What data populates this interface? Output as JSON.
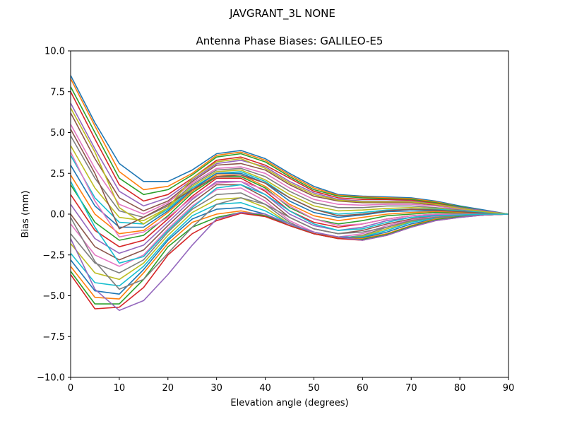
{
  "figure": {
    "suptitle": "JAVGRANT_3L     NONE"
  },
  "chart_data": {
    "type": "line",
    "title": "Antenna Phase Biases: GALILEO-E5",
    "xlabel": "Elevation angle (degrees)",
    "ylabel": "Bias (mm)",
    "xlim": [
      0,
      90
    ],
    "ylim": [
      -10,
      10
    ],
    "xticks": [
      0,
      10,
      20,
      30,
      40,
      50,
      60,
      70,
      80,
      90
    ],
    "xtick_labels": [
      "0",
      "10",
      "20",
      "30",
      "40",
      "50",
      "60",
      "70",
      "80",
      "90"
    ],
    "yticks": [
      10,
      7.5,
      5,
      2.5,
      0,
      -2.5,
      -5,
      -7.5,
      -10
    ],
    "ytick_labels": [
      "10.0",
      "7.5",
      "5.0",
      "2.5",
      "0.0",
      "−2.5",
      "−5.0",
      "−7.5",
      "−10.0"
    ],
    "grid": false,
    "legend": "none",
    "palette": [
      "#1f77b4",
      "#ff7f0e",
      "#2ca02c",
      "#d62728",
      "#9467bd",
      "#8c564b",
      "#e377c2",
      "#7f7f7f",
      "#bcbd22",
      "#17becf"
    ],
    "x": [
      0,
      5,
      10,
      15,
      20,
      25,
      30,
      35,
      40,
      45,
      50,
      55,
      60,
      65,
      70,
      75,
      80,
      85,
      90
    ],
    "series": [
      {
        "values": [
          8.5,
          5.6,
          3.1,
          2.0,
          2.0,
          2.7,
          3.7,
          3.9,
          3.4,
          2.5,
          1.7,
          1.2,
          1.1,
          1.05,
          1.0,
          0.8,
          0.5,
          0.25,
          0
        ]
      },
      {
        "values": [
          8.3,
          5.4,
          2.6,
          1.5,
          1.7,
          2.5,
          3.6,
          3.8,
          3.3,
          2.4,
          1.6,
          1.15,
          1.05,
          1.0,
          0.95,
          0.75,
          0.45,
          0.2,
          0
        ]
      },
      {
        "values": [
          7.8,
          5.0,
          2.2,
          1.2,
          1.5,
          2.4,
          3.5,
          3.7,
          3.2,
          2.3,
          1.5,
          1.1,
          1.0,
          0.95,
          0.9,
          0.7,
          0.45,
          0.2,
          0
        ]
      },
      {
        "values": [
          7.5,
          4.6,
          1.8,
          0.8,
          1.2,
          2.2,
          3.3,
          3.5,
          3.0,
          2.2,
          1.4,
          1.0,
          0.9,
          0.9,
          0.85,
          0.65,
          0.4,
          0.2,
          0
        ]
      },
      {
        "values": [
          6.8,
          4.0,
          1.4,
          0.5,
          1.0,
          2.1,
          3.1,
          3.3,
          2.9,
          2.0,
          1.3,
          0.9,
          0.8,
          0.8,
          0.8,
          0.6,
          0.4,
          0.2,
          0
        ]
      },
      {
        "values": [
          6.2,
          3.4,
          1.0,
          0.2,
          0.8,
          2.0,
          3.0,
          3.1,
          2.7,
          1.8,
          1.1,
          0.8,
          0.7,
          0.7,
          0.7,
          0.55,
          0.35,
          0.15,
          0
        ]
      },
      {
        "values": [
          5.5,
          2.8,
          0.6,
          0.0,
          0.7,
          1.9,
          2.8,
          2.9,
          2.5,
          1.6,
          0.9,
          0.6,
          0.55,
          0.6,
          0.6,
          0.5,
          0.3,
          0.15,
          0
        ]
      },
      {
        "values": [
          4.8,
          2.2,
          0.2,
          -0.2,
          0.5,
          1.8,
          2.7,
          2.8,
          2.3,
          1.4,
          0.7,
          0.4,
          0.4,
          0.5,
          0.5,
          0.4,
          0.25,
          0.1,
          0
        ]
      },
      {
        "values": [
          4.2,
          1.6,
          -0.2,
          -0.4,
          0.4,
          1.7,
          2.6,
          2.7,
          2.1,
          1.2,
          0.5,
          0.2,
          0.25,
          0.35,
          0.4,
          0.35,
          0.2,
          0.1,
          0
        ]
      },
      {
        "values": [
          3.6,
          1.0,
          -0.5,
          -0.6,
          0.3,
          1.6,
          2.5,
          2.6,
          2.0,
          1.0,
          0.3,
          0.0,
          0.1,
          0.25,
          0.3,
          0.3,
          0.2,
          0.1,
          0
        ]
      },
      {
        "values": [
          3.0,
          0.5,
          -0.8,
          -0.8,
          0.2,
          1.5,
          2.5,
          2.5,
          1.9,
          0.8,
          0.1,
          -0.2,
          -0.05,
          0.15,
          0.2,
          0.2,
          0.15,
          0.05,
          0
        ]
      },
      {
        "values": [
          2.4,
          0.0,
          -1.2,
          -1.0,
          0.1,
          1.4,
          2.4,
          2.4,
          1.7,
          0.6,
          -0.1,
          -0.4,
          -0.2,
          0.0,
          0.1,
          0.15,
          0.1,
          0.05,
          0
        ]
      },
      {
        "values": [
          1.8,
          -0.5,
          -1.6,
          -1.3,
          -0.1,
          1.3,
          2.3,
          2.3,
          1.6,
          0.4,
          -0.3,
          -0.6,
          -0.4,
          -0.1,
          0.0,
          0.1,
          0.05,
          0.0,
          0
        ]
      },
      {
        "values": [
          1.2,
          -1.0,
          -2.0,
          -1.6,
          -0.3,
          1.1,
          2.2,
          2.2,
          1.4,
          0.2,
          -0.5,
          -0.8,
          -0.6,
          -0.3,
          -0.1,
          0.0,
          0.0,
          0.0,
          0
        ]
      },
      {
        "values": [
          0.6,
          -1.5,
          -2.4,
          -1.9,
          -0.5,
          0.9,
          2.0,
          2.0,
          1.2,
          0.0,
          -0.7,
          -1.0,
          -0.8,
          -0.4,
          -0.2,
          -0.05,
          0.0,
          0.0,
          0
        ]
      },
      {
        "values": [
          0.0,
          -2.0,
          -2.8,
          -2.2,
          -0.7,
          0.7,
          1.8,
          1.8,
          1.0,
          -0.2,
          -0.9,
          -1.2,
          -1.0,
          -0.6,
          -0.3,
          -0.1,
          -0.05,
          0.0,
          0
        ]
      },
      {
        "values": [
          -0.6,
          -2.5,
          -3.2,
          -2.5,
          -0.9,
          0.5,
          1.5,
          1.6,
          0.8,
          -0.4,
          -1.1,
          -1.4,
          -1.2,
          -0.7,
          -0.35,
          -0.15,
          -0.05,
          0.0,
          0
        ]
      },
      {
        "values": [
          -1.2,
          -3.0,
          -3.6,
          -2.8,
          -1.1,
          0.3,
          1.2,
          1.3,
          0.6,
          -0.5,
          -1.2,
          -1.5,
          -1.3,
          -0.8,
          -0.4,
          -0.2,
          -0.1,
          0.0,
          0
        ]
      },
      {
        "values": [
          -1.8,
          -3.6,
          -4.0,
          -3.0,
          -1.3,
          0.1,
          0.9,
          1.0,
          0.4,
          -0.6,
          -1.2,
          -1.45,
          -1.35,
          -0.9,
          -0.45,
          -0.2,
          -0.1,
          -0.05,
          0
        ]
      },
      {
        "values": [
          -2.4,
          -4.2,
          -4.4,
          -3.2,
          -1.5,
          -0.1,
          0.6,
          0.7,
          0.2,
          -0.6,
          -1.2,
          -1.4,
          -1.4,
          -1.0,
          -0.5,
          -0.25,
          -0.1,
          -0.05,
          0
        ]
      },
      {
        "values": [
          -2.8,
          -4.7,
          -4.9,
          -3.4,
          -1.6,
          -0.3,
          0.3,
          0.4,
          0.0,
          -0.7,
          -1.2,
          -1.4,
          -1.45,
          -1.1,
          -0.6,
          -0.3,
          -0.15,
          -0.05,
          0
        ]
      },
      {
        "values": [
          -3.2,
          -5.1,
          -5.2,
          -3.6,
          -1.8,
          -0.5,
          0.0,
          0.2,
          -0.1,
          -0.7,
          -1.2,
          -1.45,
          -1.5,
          -1.2,
          -0.7,
          -0.3,
          -0.15,
          -0.05,
          0
        ]
      },
      {
        "values": [
          -3.5,
          -5.5,
          -5.5,
          -4.0,
          -2.0,
          -0.8,
          -0.2,
          0.1,
          -0.1,
          -0.7,
          -1.2,
          -1.5,
          -1.55,
          -1.25,
          -0.75,
          -0.35,
          -0.15,
          -0.05,
          0
        ]
      },
      {
        "values": [
          -3.7,
          -5.8,
          -5.7,
          -4.5,
          -2.5,
          -1.2,
          -0.4,
          0.05,
          -0.15,
          -0.7,
          -1.2,
          -1.5,
          -1.6,
          -1.3,
          -0.8,
          -0.4,
          -0.2,
          -0.05,
          0
        ]
      },
      {
        "values": [
          -1.5,
          -4.6,
          -5.9,
          -5.3,
          -3.7,
          -1.9,
          -0.3,
          0.1,
          0.0,
          -0.6,
          -1.1,
          -1.4,
          -1.6,
          -1.3,
          -0.8,
          -0.4,
          -0.2,
          -0.05,
          0
        ]
      },
      {
        "values": [
          5.2,
          2.5,
          -0.9,
          -0.2,
          0.6,
          1.5,
          2.3,
          2.4,
          1.9,
          1.0,
          0.3,
          -0.1,
          0.0,
          0.2,
          0.3,
          0.25,
          0.15,
          0.05,
          0
        ]
      },
      {
        "values": [
          3.8,
          0.8,
          -1.4,
          -1.1,
          -0.2,
          1.0,
          1.9,
          2.0,
          1.5,
          0.5,
          -0.3,
          -0.7,
          -0.6,
          -0.3,
          -0.1,
          0.0,
          0.0,
          0.0,
          0
        ]
      },
      {
        "values": [
          -0.2,
          -2.9,
          -4.6,
          -4.0,
          -2.4,
          -0.8,
          0.6,
          1.0,
          0.6,
          -0.2,
          -0.9,
          -1.2,
          -1.1,
          -0.8,
          -0.4,
          -0.2,
          -0.1,
          0.0,
          0
        ]
      },
      {
        "values": [
          6.5,
          3.8,
          0.4,
          -0.6,
          0.4,
          2.2,
          3.2,
          3.4,
          2.8,
          1.9,
          1.2,
          0.85,
          0.75,
          0.75,
          0.75,
          0.6,
          0.35,
          0.15,
          0
        ]
      },
      {
        "values": [
          2.0,
          -0.8,
          -3.0,
          -2.6,
          -1.0,
          0.4,
          1.6,
          1.8,
          1.2,
          0.2,
          -0.6,
          -1.0,
          -0.9,
          -0.5,
          -0.2,
          -0.1,
          -0.05,
          0.0,
          0
        ]
      }
    ]
  }
}
